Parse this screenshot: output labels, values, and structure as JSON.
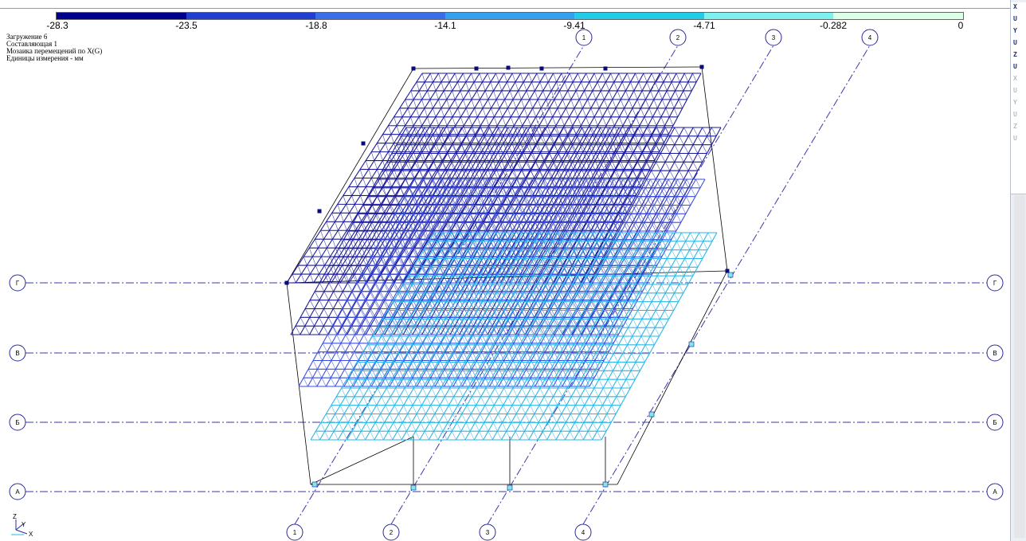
{
  "legend": {
    "ticks": [
      "-28.3",
      "-23.5",
      "-18.8",
      "-14.1",
      "-9.41",
      "-4.71",
      "-0.282",
      "0"
    ],
    "colors": [
      "#00008b",
      "#1f3fd0",
      "#3a6ee8",
      "#34a0f0",
      "#22cce8",
      "#7ff0f0",
      "#dcffe8"
    ]
  },
  "info": {
    "line1": "Загружение  6",
    "line2": "Составляющая  1",
    "line3": "Мозаика перемещений по X(G)",
    "line4": "Единицы измерения - мм"
  },
  "grid_axes": {
    "letters": [
      "Г",
      "В",
      "Б",
      "А"
    ],
    "numbers_top": [
      "1",
      "2",
      "3",
      "4"
    ],
    "numbers_bottom": [
      "1",
      "2",
      "3",
      "4"
    ]
  },
  "coord_triad": {
    "z": "Z",
    "y": "Y",
    "x": "X"
  },
  "right_toolbar": {
    "buttons": [
      "X",
      "U",
      "Y",
      "U",
      "Z",
      "U"
    ],
    "dim_buttons": [
      "X",
      "U",
      "Y",
      "U",
      "Z",
      "U"
    ]
  },
  "colors": {
    "slab_dark": "#1a1a9a",
    "slab_mid": "#3a4fe0",
    "slab_light": "#2ab6e6",
    "axis_line": "#3a3aa8",
    "frame": "#000000"
  }
}
